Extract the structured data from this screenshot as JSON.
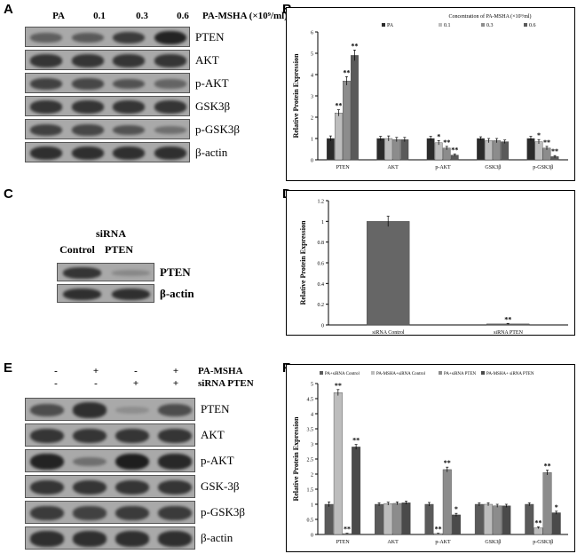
{
  "panels": [
    "A",
    "B",
    "C",
    "D",
    "E",
    "F"
  ],
  "blotA": {
    "columns": [
      "PA",
      "0.1",
      "0.3",
      "0.6"
    ],
    "treatment": "PA-MSHA (×10⁹/ml)",
    "rows": [
      {
        "label": "PTEN",
        "intensity": [
          0.45,
          0.5,
          0.75,
          0.95
        ]
      },
      {
        "label": "AKT",
        "intensity": [
          0.8,
          0.8,
          0.8,
          0.8
        ]
      },
      {
        "label": "p-AKT",
        "intensity": [
          0.7,
          0.65,
          0.55,
          0.4
        ]
      },
      {
        "label": "GSK3β",
        "intensity": [
          0.8,
          0.8,
          0.8,
          0.8
        ]
      },
      {
        "label": "p-GSK3β",
        "intensity": [
          0.7,
          0.65,
          0.55,
          0.3
        ]
      },
      {
        "label": "β-actin",
        "intensity": [
          0.85,
          0.85,
          0.85,
          0.85
        ]
      }
    ]
  },
  "blotC": {
    "group": "siRNA",
    "columns": [
      "Control",
      "PTEN"
    ],
    "rows": [
      {
        "label": "PTEN",
        "intensity": [
          0.8,
          0.1
        ]
      },
      {
        "label": "β-actin",
        "intensity": [
          0.85,
          0.85
        ]
      }
    ]
  },
  "blotE": {
    "row1_label": "PA-MSHA",
    "row1_signs": [
      "-",
      "+",
      "-",
      "+"
    ],
    "row2_label": "siRNA PTEN",
    "row2_signs": [
      "-",
      "-",
      "+",
      "+"
    ],
    "rows": [
      {
        "label": "PTEN",
        "intensity": [
          0.6,
          0.85,
          0.05,
          0.6
        ]
      },
      {
        "label": "AKT",
        "intensity": [
          0.8,
          0.8,
          0.8,
          0.8
        ]
      },
      {
        "label": "p-AKT",
        "intensity": [
          0.95,
          0.3,
          1.0,
          0.9
        ]
      },
      {
        "label": "GSK-3β",
        "intensity": [
          0.8,
          0.8,
          0.8,
          0.8
        ]
      },
      {
        "label": "p-GSK3β",
        "intensity": [
          0.75,
          0.7,
          0.75,
          0.75
        ]
      },
      {
        "label": "β-actin",
        "intensity": [
          0.85,
          0.85,
          0.85,
          0.85
        ]
      }
    ]
  },
  "chart_data": [
    {
      "id": "B",
      "type": "bar",
      "title": "Concentration of PA-MSHA (×10⁹/ml)",
      "ylabel": "Relative Protein Expression",
      "ylim": [
        0,
        6
      ],
      "yticks": [
        0,
        1,
        2,
        3,
        4,
        5,
        6
      ],
      "categories": [
        "PTEN",
        "AKT",
        "p-AKT",
        "GSK3β",
        "p-GSK3β"
      ],
      "series": [
        {
          "name": "PA",
          "color": "#2b2b2b",
          "values": [
            1.0,
            1.0,
            1.0,
            1.0,
            1.0
          ],
          "errors": [
            0.12,
            0.1,
            0.1,
            0.08,
            0.1
          ],
          "sig": [
            "",
            "",
            "",
            "",
            ""
          ]
        },
        {
          "name": "0.1",
          "color": "#bdbdbd",
          "values": [
            2.2,
            1.0,
            0.8,
            0.9,
            0.85
          ],
          "errors": [
            0.15,
            0.12,
            0.1,
            0.1,
            0.1
          ],
          "sig": [
            "**",
            "",
            "*",
            "",
            "*"
          ]
        },
        {
          "name": "0.3",
          "color": "#8c8c8c",
          "values": [
            3.7,
            0.95,
            0.55,
            0.9,
            0.55
          ],
          "errors": [
            0.2,
            0.1,
            0.08,
            0.1,
            0.08
          ],
          "sig": [
            "**",
            "",
            "**",
            "",
            "**"
          ]
        },
        {
          "name": "0.6",
          "color": "#5a5a5a",
          "values": [
            4.9,
            0.95,
            0.22,
            0.85,
            0.15
          ],
          "errors": [
            0.25,
            0.1,
            0.05,
            0.08,
            0.05
          ],
          "sig": [
            "**",
            "",
            "**",
            "",
            "**"
          ]
        }
      ]
    },
    {
      "id": "D",
      "type": "bar",
      "ylabel": "Relative Protein Expression",
      "ylim": [
        0,
        1.2
      ],
      "yticks": [
        0,
        0.2,
        0.4,
        0.6,
        0.8,
        1,
        1.2
      ],
      "ytick_labels": [
        "0",
        "0.2",
        "0.4",
        "0.6",
        "0.8",
        "1",
        "1.2"
      ],
      "categories": [
        "siRNA Control",
        "siRNA PTEN"
      ],
      "values": [
        1.0,
        0.01
      ],
      "errors": [
        0.05,
        0.005
      ],
      "sig": [
        "",
        "**"
      ],
      "color": "#666666"
    },
    {
      "id": "F",
      "type": "bar",
      "ylabel": "Relative Protein Expression",
      "ylim": [
        0,
        5
      ],
      "yticks": [
        0,
        0.5,
        1,
        1.5,
        2,
        2.5,
        3,
        3.5,
        4,
        4.5,
        5
      ],
      "ytick_labels": [
        "0",
        "0.5",
        "1",
        "1.5",
        "2",
        "2.5",
        "3",
        "3.5",
        "4",
        "4.5",
        "5"
      ],
      "categories": [
        "PTEN",
        "AKT",
        "p-AKT",
        "GSK3β",
        "p-GSK3β"
      ],
      "series": [
        {
          "name": "PA+siRNA Control",
          "color": "#5a5a5a",
          "values": [
            1.0,
            1.0,
            1.0,
            1.0,
            1.0
          ],
          "errors": [
            0.08,
            0.05,
            0.06,
            0.05,
            0.05
          ],
          "sig": [
            "",
            "",
            "",
            "",
            ""
          ]
        },
        {
          "name": "PA-MSHA+siRNA Control",
          "color": "#bdbdbd",
          "values": [
            4.7,
            1.02,
            0.03,
            1.0,
            0.22
          ],
          "errors": [
            0.1,
            0.05,
            0.01,
            0.05,
            0.03
          ],
          "sig": [
            "**",
            "",
            "**",
            "",
            "**"
          ]
        },
        {
          "name": "PA+siRNA PTEN",
          "color": "#8c8c8c",
          "values": [
            0.03,
            1.03,
            2.15,
            0.95,
            2.05
          ],
          "errors": [
            0.01,
            0.05,
            0.08,
            0.05,
            0.08
          ],
          "sig": [
            "**",
            "",
            "**",
            "",
            "**"
          ]
        },
        {
          "name": "PA-MSHA+ siRNA PTEN",
          "color": "#4a4a4a",
          "values": [
            2.9,
            1.05,
            0.65,
            0.95,
            0.72
          ],
          "errors": [
            0.08,
            0.05,
            0.05,
            0.05,
            0.05
          ],
          "sig": [
            "**",
            "",
            "*",
            "",
            "*"
          ]
        }
      ]
    }
  ]
}
